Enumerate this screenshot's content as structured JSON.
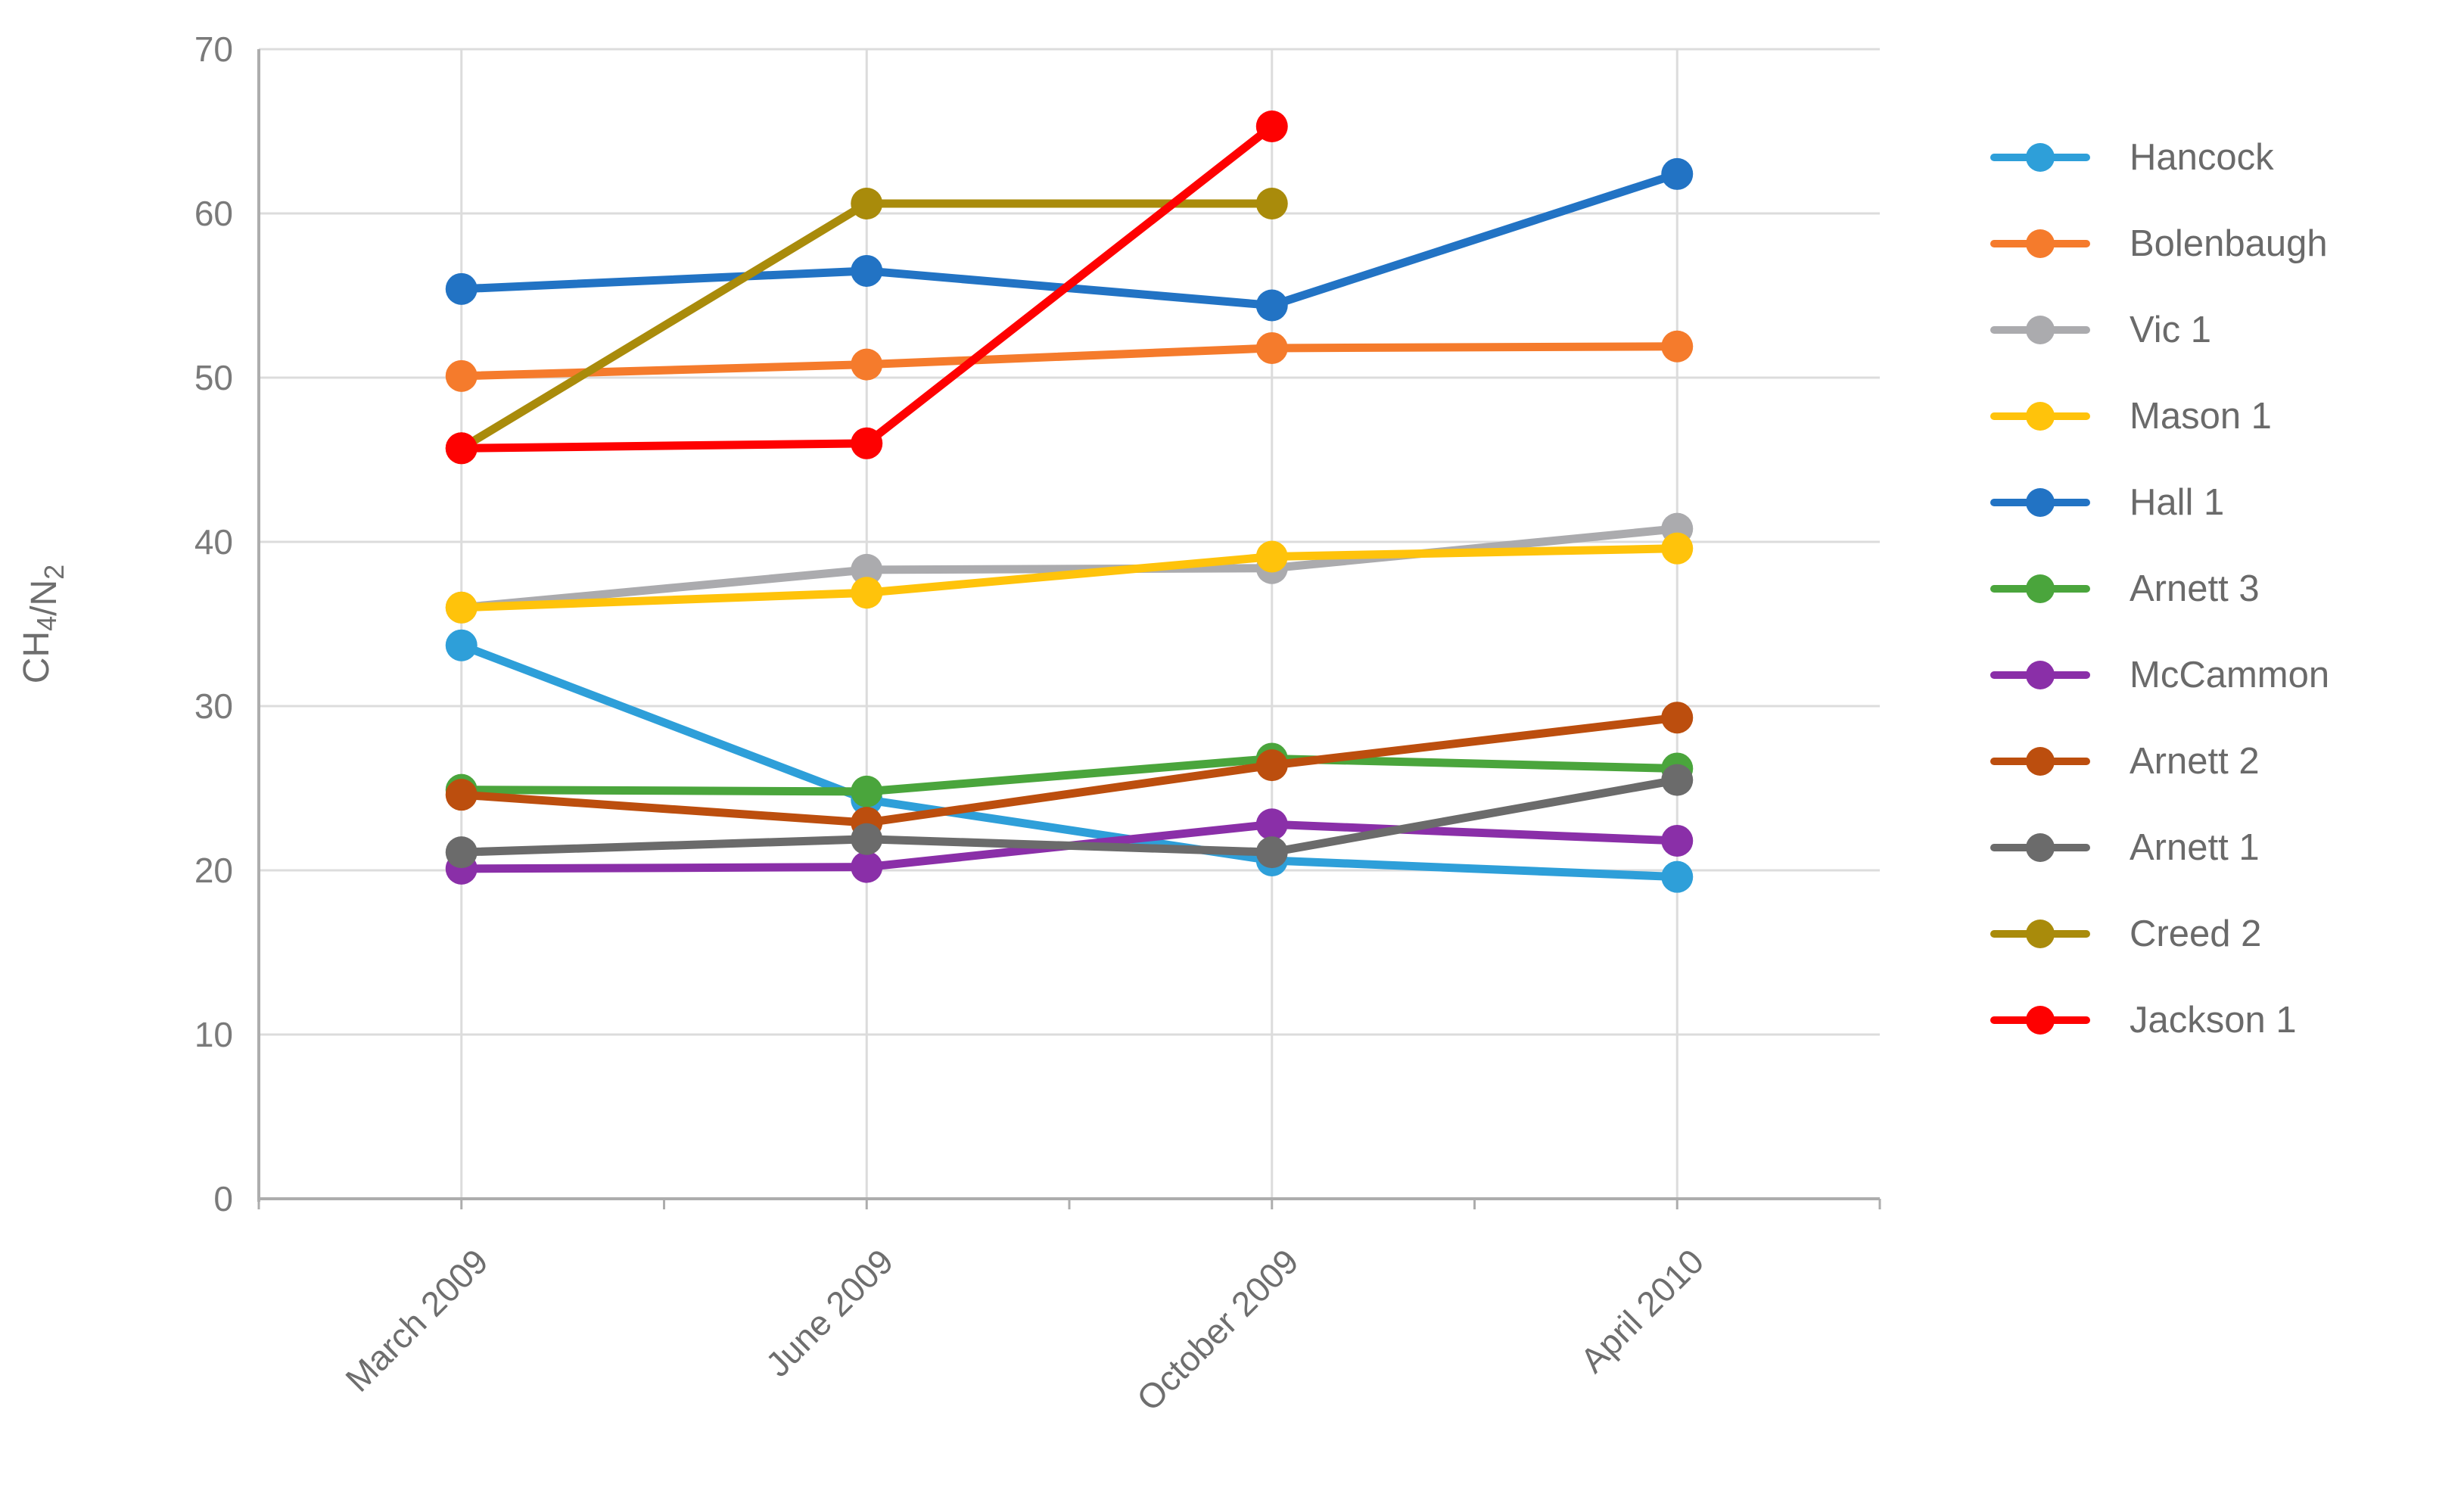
{
  "chart_data": {
    "type": "line",
    "title": "",
    "categories": [
      "March 2009",
      "June 2009",
      "October 2009",
      "April 2010"
    ],
    "x_axis": {
      "tick_labels": [
        "March 2009",
        "June 2009",
        "October 2009",
        "April 2010"
      ],
      "label_rotation_deg": -45
    },
    "y_axis": {
      "title": "CH4/N2",
      "title_rich": [
        {
          "text": "CH",
          "sub": false
        },
        {
          "text": "4",
          "sub": true
        },
        {
          "text": "/N",
          "sub": false
        },
        {
          "text": "2",
          "sub": true
        }
      ],
      "min": 0,
      "max": 70,
      "step": 10,
      "tick_labels": [
        "0",
        "10",
        "20",
        "30",
        "40",
        "50",
        "60",
        "70"
      ]
    },
    "grid": {
      "horizontal": true,
      "vertical": true
    },
    "legend_position": "right",
    "series": [
      {
        "name": "Hancock",
        "color": "#2E9FD9",
        "values": [
          33.7,
          24.3,
          20.6,
          19.6
        ]
      },
      {
        "name": "Bolenbaugh",
        "color": "#F57B2C",
        "values": [
          50.1,
          50.8,
          51.8,
          51.9
        ]
      },
      {
        "name": "Vic 1",
        "color": "#ABABAE",
        "values": [
          36.0,
          38.3,
          38.4,
          40.8
        ]
      },
      {
        "name": "Mason 1",
        "color": "#FFC30B",
        "values": [
          36.0,
          36.9,
          39.1,
          39.6
        ]
      },
      {
        "name": "Hall 1",
        "color": "#2273C4",
        "values": [
          55.4,
          56.5,
          54.4,
          62.4
        ]
      },
      {
        "name": "Arnett 3",
        "color": "#4AA53C",
        "values": [
          24.9,
          24.8,
          26.8,
          26.2
        ]
      },
      {
        "name": "McCammon",
        "color": "#8A2FA8",
        "values": [
          20.1,
          20.2,
          22.8,
          21.8
        ]
      },
      {
        "name": "Arnett 2",
        "color": "#BC4E0E",
        "values": [
          24.6,
          22.9,
          26.4,
          29.3
        ]
      },
      {
        "name": "Arnett 1",
        "color": "#6B6B6B",
        "values": [
          21.1,
          21.9,
          21.1,
          25.5
        ]
      },
      {
        "name": "Creed 2",
        "color": "#A98B0B",
        "values": [
          45.7,
          60.6,
          60.6,
          null
        ]
      },
      {
        "name": "Jackson 1",
        "color": "#FE0101",
        "values": [
          45.7,
          46.0,
          65.3,
          null
        ]
      }
    ]
  },
  "style": {
    "gridline_color": "#DCDCDC",
    "axis_color": "#ADADAD",
    "tick_text_color": "#7A7A7A",
    "x_label_color": "#6E6E6E",
    "y_title_color": "#6E6E6E",
    "legend_text_color": "#6A6A6A"
  }
}
